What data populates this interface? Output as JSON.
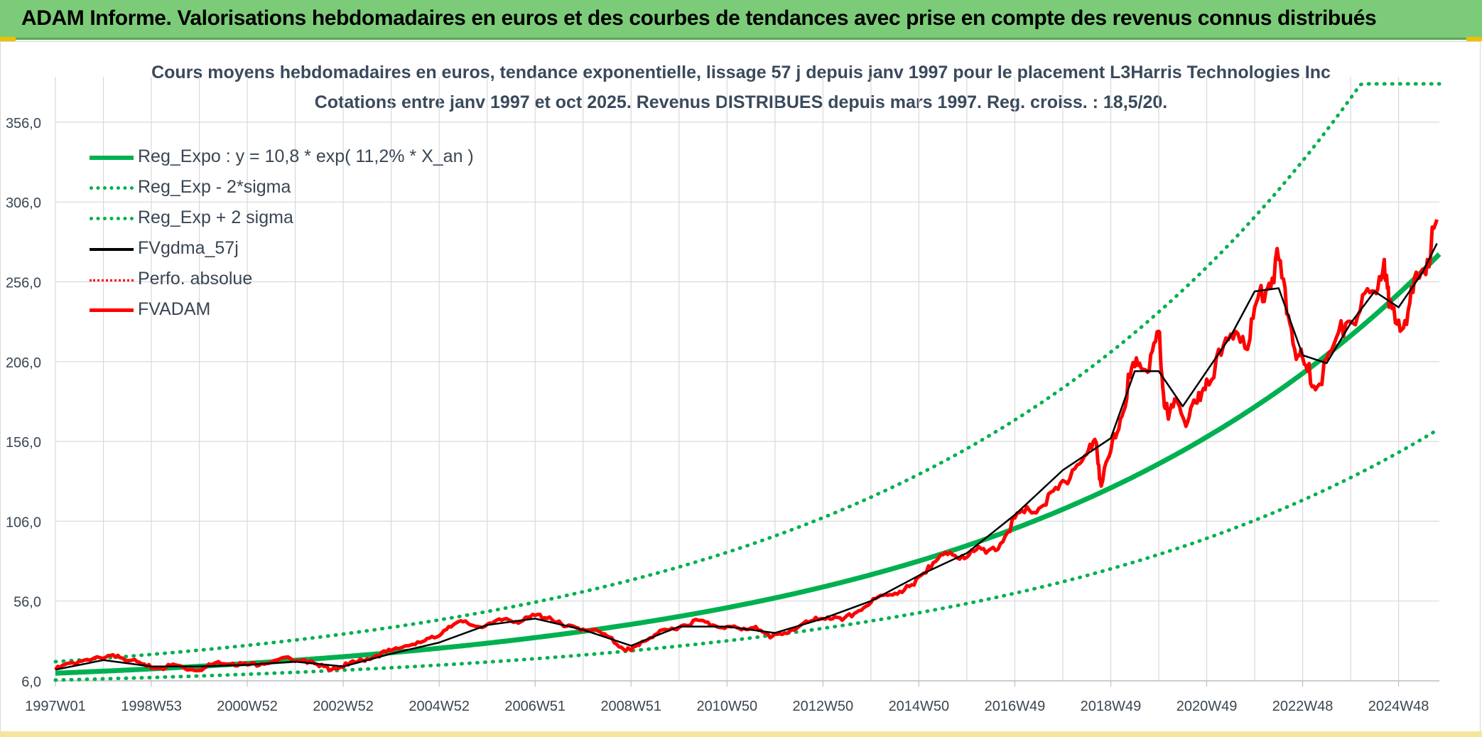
{
  "banner": {
    "title": "ADAM Informe. Valorisations hebdomadaires en euros et des courbes de tendances avec prise en compte des revenus connus distribués"
  },
  "colors": {
    "banner_bg": "#7ccb78",
    "trend_green": "#00b050",
    "gdma_black": "#000000",
    "adam_red": "#ff0000",
    "grid": "#d9d9d9",
    "text": "#3a4654"
  },
  "chart_data": {
    "type": "line",
    "title_line1": "Cours moyens hebdomadaires en euros, tendance exponentielle, lissage 57 j depuis janv 1997 pour le placement L3Harris Technologies Inc",
    "title_line2": "Cotations entre janv 1997 et oct 2025. Revenus DISTRIBUES depuis mars 1997. Reg. croiss. : 18,5/20.",
    "y_ticks": [
      "6,0",
      "56,0",
      "106,0",
      "156,0",
      "206,0",
      "256,0",
      "306,0",
      "356,0"
    ],
    "y_tick_values": [
      6,
      56,
      106,
      156,
      206,
      256,
      306,
      356
    ],
    "ylim": [
      6,
      380
    ],
    "x_ticks": [
      "1997W01",
      "1998W53",
      "2000W52",
      "2002W52",
      "2004W52",
      "2006W51",
      "2008W51",
      "2010W50",
      "2012W50",
      "2014W50",
      "2016W49",
      "2018W49",
      "2020W49",
      "2022W48",
      "2024W48"
    ],
    "x_tick_years": [
      1997.0,
      1999.0,
      2001.0,
      2003.0,
      2005.0,
      2007.0,
      2009.0,
      2011.0,
      2013.0,
      2015.0,
      2017.0,
      2019.0,
      2021.0,
      2023.0,
      2025.0
    ],
    "xlim": [
      1997.0,
      2025.85
    ],
    "legend": [
      {
        "label": "Reg_Expo : y = 10,8 * exp( 11,2% *  X_an )",
        "color": "#00b050",
        "style": "solid-thick"
      },
      {
        "label": "Reg_Exp - 2*sigma",
        "color": "#00b050",
        "style": "dotted"
      },
      {
        "label": "Reg_Exp + 2 sigma",
        "color": "#00b050",
        "style": "dotted"
      },
      {
        "label": "FVgdma_57j",
        "color": "#000000",
        "style": "solid"
      },
      {
        "label": "Perfo. absolue",
        "color": "#ff0000",
        "style": "dotted-thin"
      },
      {
        "label": "FVADAM",
        "color": "#ff0000",
        "style": "solid-thick"
      }
    ],
    "regression": {
      "a": 10.8,
      "b": 0.112,
      "lower_factor": 0.6,
      "upper_factor": 1.67,
      "cap": 380
    },
    "series": [
      {
        "name": "FVADAM",
        "x": [
          1997.0,
          1997.3,
          1997.6,
          1998.0,
          1998.3,
          1998.6,
          1998.9,
          1999.2,
          1999.5,
          1999.8,
          2000.1,
          2000.4,
          2000.7,
          2001.0,
          2001.3,
          2001.6,
          2001.9,
          2002.2,
          2002.5,
          2002.8,
          2003.1,
          2003.4,
          2003.7,
          2004.0,
          2004.3,
          2004.6,
          2004.9,
          2005.2,
          2005.5,
          2005.8,
          2006.1,
          2006.4,
          2006.7,
          2007.0,
          2007.3,
          2007.6,
          2007.9,
          2008.2,
          2008.5,
          2008.8,
          2009.0,
          2009.2,
          2009.5,
          2009.8,
          2010.1,
          2010.4,
          2010.7,
          2011.0,
          2011.3,
          2011.6,
          2011.9,
          2012.2,
          2012.5,
          2012.8,
          2013.1,
          2013.4,
          2013.7,
          2014.0,
          2014.3,
          2014.6,
          2014.9,
          2015.2,
          2015.5,
          2015.8,
          2016.1,
          2016.4,
          2016.7,
          2017.0,
          2017.3,
          2017.6,
          2017.9,
          2018.2,
          2018.5,
          2018.7,
          2018.8,
          2019.0,
          2019.2,
          2019.4,
          2019.6,
          2019.8,
          2020.0,
          2020.1,
          2020.2,
          2020.4,
          2020.6,
          2020.8,
          2021.0,
          2021.3,
          2021.6,
          2021.9,
          2022.1,
          2022.3,
          2022.5,
          2022.7,
          2022.9,
          2023.1,
          2023.3,
          2023.6,
          2023.9,
          2024.2,
          2024.5,
          2024.7,
          2024.8,
          2025.0,
          2025.2,
          2025.4,
          2025.6,
          2025.8
        ],
        "y": [
          13,
          17,
          19,
          20,
          22,
          19,
          15,
          14,
          16,
          13,
          14,
          18,
          17,
          16,
          17,
          19,
          20,
          19,
          15,
          14,
          16,
          19,
          22,
          25,
          28,
          30,
          33,
          40,
          43,
          40,
          42,
          45,
          43,
          47,
          46,
          40,
          39,
          38,
          34,
          27,
          25,
          30,
          35,
          38,
          41,
          44,
          41,
          40,
          38,
          40,
          33,
          36,
          40,
          44,
          46,
          44,
          49,
          55,
          60,
          62,
          66,
          78,
          85,
          83,
          88,
          86,
          92,
          108,
          113,
          116,
          126,
          138,
          148,
          155,
          128,
          150,
          170,
          196,
          205,
          200,
          225,
          185,
          170,
          180,
          168,
          180,
          195,
          210,
          225,
          220,
          250,
          255,
          270,
          235,
          210,
          200,
          190,
          213,
          230,
          238,
          250,
          270,
          240,
          232,
          238,
          258,
          270,
          295
        ]
      },
      {
        "name": "FVgdma_57j",
        "x": [
          1997.0,
          1998.0,
          1999.0,
          2000.0,
          2001.0,
          2002.0,
          2003.0,
          2004.0,
          2005.0,
          2006.0,
          2007.0,
          2008.0,
          2009.0,
          2010.0,
          2011.0,
          2012.0,
          2013.0,
          2014.0,
          2015.0,
          2016.0,
          2017.0,
          2018.0,
          2019.0,
          2019.5,
          2020.0,
          2020.5,
          2021.0,
          2021.5,
          2022.0,
          2022.5,
          2023.0,
          2023.5,
          2024.0,
          2024.5,
          2025.0,
          2025.5,
          2025.8
        ],
        "y": [
          13,
          19,
          15,
          15,
          16,
          18,
          15,
          23,
          30,
          41,
          45,
          38,
          28,
          40,
          40,
          36,
          45,
          56,
          72,
          86,
          110,
          138,
          158,
          200,
          200,
          178,
          200,
          222,
          250,
          252,
          210,
          205,
          230,
          250,
          240,
          262,
          280
        ]
      }
    ]
  }
}
